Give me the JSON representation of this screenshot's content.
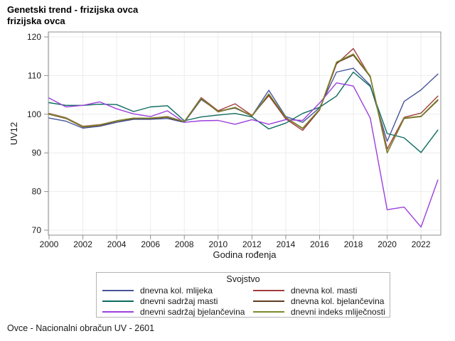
{
  "header": {
    "title_line1": "Genetski trend - frizijska ovca",
    "title_line2": "frizijska ovca"
  },
  "legend": {
    "title": "Svojstvo"
  },
  "footer": {
    "note": "Ovce - Nacionalni obračun UV - 2601"
  },
  "chart_data": {
    "type": "line",
    "title": "Genetski trend - frizijska ovca / frizijska ovca",
    "xlabel": "Godina rođenja",
    "ylabel": "UV12",
    "grid": true,
    "legend_position": "bottom",
    "ylim": [
      70,
      120
    ],
    "y_ticks": [
      70,
      80,
      90,
      100,
      110,
      120
    ],
    "x_ticks": [
      2000,
      2002,
      2004,
      2006,
      2008,
      2010,
      2012,
      2014,
      2016,
      2018,
      2020,
      2022
    ],
    "x": [
      2000,
      2001,
      2002,
      2003,
      2004,
      2005,
      2006,
      2007,
      2008,
      2009,
      2010,
      2011,
      2012,
      2013,
      2014,
      2015,
      2016,
      2017,
      2018,
      2019,
      2020,
      2021,
      2022,
      2023
    ],
    "series": [
      {
        "name": "dnevna kol. mlijeka",
        "color": "#46569a",
        "values": [
          99.0,
          98.2,
          96.4,
          96.9,
          97.9,
          98.7,
          98.7,
          98.9,
          97.9,
          103.8,
          100.8,
          101.6,
          99.6,
          106.2,
          99.4,
          97.9,
          101.7,
          110.9,
          111.9,
          107.5,
          93.0,
          103.3,
          106.3,
          110.4
        ]
      },
      {
        "name": "dnevna kol. masti",
        "color": "#a23d3d",
        "values": [
          100.2,
          99.1,
          96.9,
          97.3,
          98.3,
          99.0,
          99.0,
          99.4,
          98.1,
          104.3,
          100.9,
          102.7,
          99.7,
          104.8,
          98.8,
          95.8,
          101.1,
          113.0,
          117.0,
          109.6,
          91.0,
          99.2,
          100.3,
          104.7
        ]
      },
      {
        "name": "dnevni sadržaj masti",
        "color": "#0e6b5e",
        "values": [
          103.0,
          102.3,
          102.3,
          102.6,
          102.5,
          100.7,
          101.9,
          102.2,
          98.3,
          99.3,
          99.8,
          100.2,
          99.3,
          96.2,
          97.7,
          100.2,
          101.8,
          104.7,
          110.9,
          107.2,
          95.0,
          93.9,
          90.1,
          95.9
        ]
      },
      {
        "name": "dnevna kol. bjelančevina",
        "color": "#5f3c20",
        "values": [
          100.0,
          98.9,
          96.7,
          97.1,
          98.2,
          98.9,
          98.9,
          99.2,
          98.0,
          104.0,
          100.6,
          101.7,
          99.5,
          105.1,
          99.1,
          96.3,
          101.2,
          113.3,
          115.3,
          109.7,
          90.0,
          98.9,
          99.4,
          103.6
        ]
      },
      {
        "name": "dnevni sadržaj bjelančevina",
        "color": "#9c3fdb",
        "values": [
          104.2,
          101.9,
          102.3,
          103.2,
          101.4,
          100.1,
          99.4,
          100.9,
          97.9,
          98.3,
          98.4,
          97.4,
          98.6,
          97.4,
          98.6,
          98.4,
          102.9,
          108.1,
          107.3,
          99.0,
          75.3,
          76.0,
          70.8,
          83.0
        ]
      },
      {
        "name": "dnevni indeks mliječnosti",
        "color": "#7e8a2a",
        "values": [
          100.1,
          99.0,
          96.8,
          97.2,
          98.3,
          99.0,
          99.0,
          99.3,
          98.1,
          104.1,
          100.7,
          101.8,
          99.6,
          105.3,
          99.2,
          96.4,
          101.3,
          113.5,
          115.6,
          109.9,
          90.1,
          99.0,
          99.5,
          103.8
        ]
      }
    ]
  }
}
